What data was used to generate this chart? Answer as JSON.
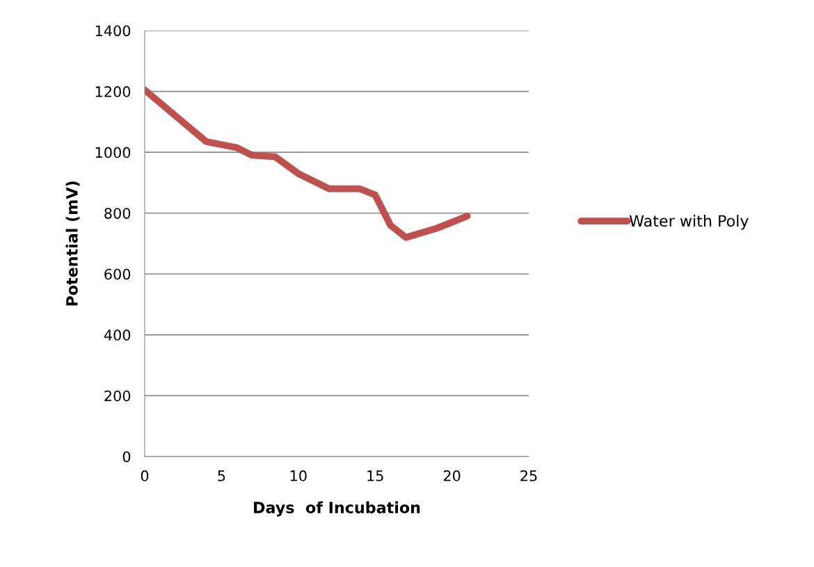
{
  "chart_data": {
    "type": "line",
    "xlabel": "Days  of Incubation",
    "ylabel": "Potential (mV)",
    "series": [
      {
        "name": "Water with Poly",
        "color": "#c0504d",
        "x": [
          0,
          2,
          4,
          6,
          7,
          8.5,
          10,
          12,
          14,
          15,
          16,
          17,
          19,
          21
        ],
        "values": [
          1205,
          1120,
          1035,
          1015,
          990,
          985,
          930,
          880,
          880,
          860,
          760,
          720,
          750,
          790
        ]
      }
    ],
    "xlim": [
      0,
      25
    ],
    "xticks": [
      0,
      5,
      10,
      15,
      20,
      25
    ],
    "ylim": [
      0,
      1400
    ],
    "yticks": [
      0,
      200,
      400,
      600,
      800,
      1000,
      1200,
      1400
    ],
    "grid": "y",
    "legend": "right",
    "marker": "none",
    "line_style": "solid"
  }
}
